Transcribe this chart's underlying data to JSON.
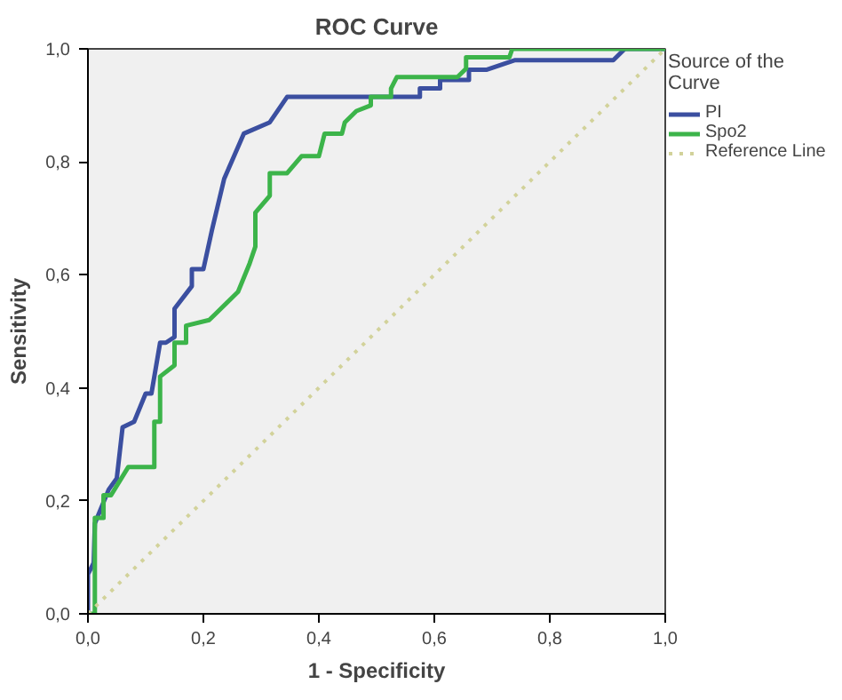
{
  "chart_data": {
    "type": "line",
    "title": "ROC Curve",
    "xlabel": "1 - Specificity",
    "ylabel": "Sensitivity",
    "legend_title": "Source of the Curve",
    "legend": "right",
    "grid": false,
    "xlim": [
      0,
      1
    ],
    "ylim": [
      0,
      1
    ],
    "xticks": [
      {
        "value": 0,
        "label": "0,0"
      },
      {
        "value": 0.2,
        "label": "0,2"
      },
      {
        "value": 0.4,
        "label": "0,4"
      },
      {
        "value": 0.6,
        "label": "0,6"
      },
      {
        "value": 0.8,
        "label": "0,8"
      },
      {
        "value": 1,
        "label": "1,0"
      }
    ],
    "yticks": [
      {
        "value": 0,
        "label": "0,0"
      },
      {
        "value": 0.2,
        "label": "0,2"
      },
      {
        "value": 0.4,
        "label": "0,4"
      },
      {
        "value": 0.6,
        "label": "0,6"
      },
      {
        "value": 0.8,
        "label": "0,8"
      },
      {
        "value": 1,
        "label": "1,0"
      }
    ],
    "series": [
      {
        "name": "PI",
        "color": "#3b4fa0",
        "line_style": "solid",
        "x": [
          0,
          0,
          0.01,
          0.012,
          0.036,
          0.05,
          0.06,
          0.08,
          0.1,
          0.11,
          0.125,
          0.135,
          0.15,
          0.15,
          0.18,
          0.18,
          0.2,
          0.215,
          0.236,
          0.27,
          0.315,
          0.345,
          0.575,
          0.575,
          0.61,
          0.61,
          0.66,
          0.66,
          0.69,
          0.74,
          0.91,
          0.93,
          1
        ],
        "values": [
          0,
          0.07,
          0.09,
          0.16,
          0.22,
          0.24,
          0.33,
          0.34,
          0.39,
          0.39,
          0.48,
          0.48,
          0.49,
          0.54,
          0.58,
          0.61,
          0.61,
          0.68,
          0.77,
          0.85,
          0.87,
          0.915,
          0.915,
          0.93,
          0.93,
          0.945,
          0.945,
          0.963,
          0.963,
          0.98,
          0.98,
          1,
          1
        ]
      },
      {
        "name": "Spo2",
        "color": "#3cb44a",
        "line_style": "solid",
        "x": [
          0,
          0.012,
          0.012,
          0.027,
          0.027,
          0.04,
          0.07,
          0.115,
          0.115,
          0.125,
          0.125,
          0.15,
          0.15,
          0.17,
          0.17,
          0.21,
          0.22,
          0.26,
          0.28,
          0.29,
          0.29,
          0.315,
          0.315,
          0.345,
          0.37,
          0.4,
          0.41,
          0.44,
          0.445,
          0.465,
          0.49,
          0.49,
          0.525,
          0.525,
          0.535,
          0.64,
          0.655,
          0.655,
          0.73,
          0.735,
          1
        ],
        "values": [
          0,
          0,
          0.17,
          0.17,
          0.21,
          0.21,
          0.26,
          0.26,
          0.34,
          0.34,
          0.42,
          0.44,
          0.48,
          0.48,
          0.51,
          0.52,
          0.53,
          0.57,
          0.62,
          0.65,
          0.71,
          0.74,
          0.78,
          0.78,
          0.81,
          0.81,
          0.85,
          0.85,
          0.87,
          0.89,
          0.9,
          0.915,
          0.915,
          0.93,
          0.95,
          0.95,
          0.965,
          0.985,
          0.985,
          1,
          1
        ]
      },
      {
        "name": "Reference Line",
        "color": "#d2d29a",
        "line_style": "dotted",
        "x": [
          0,
          1
        ],
        "values": [
          0,
          1
        ]
      }
    ]
  }
}
